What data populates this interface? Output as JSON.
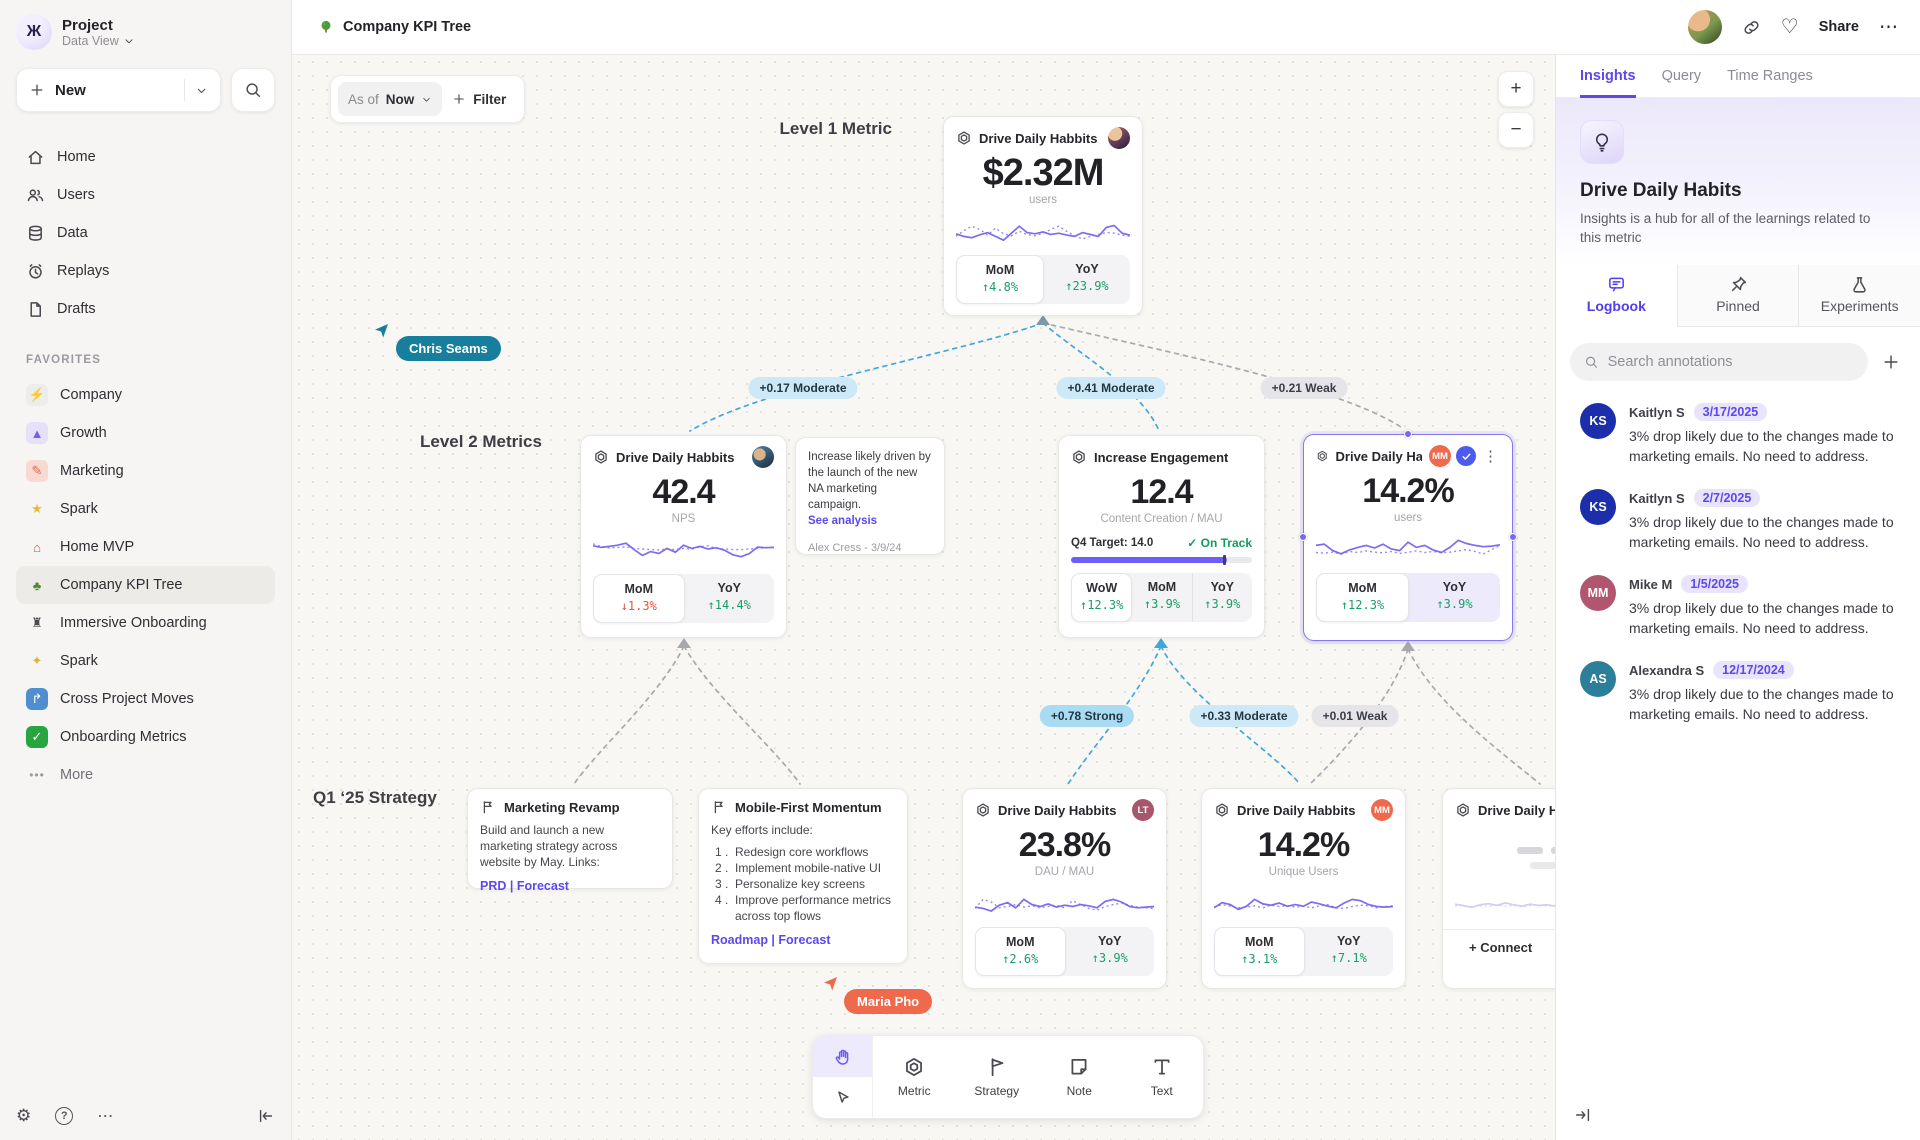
{
  "icons": {
    "more": "•••",
    "kebab": "⋮",
    "ellipsis": "⋯",
    "heart": "♡",
    "gear": "⚙",
    "help": "?",
    "logo": "Ж"
  },
  "sidebar": {
    "project_title": "Project",
    "project_subtitle": "Data View",
    "new_label": "New",
    "nav": [
      {
        "label": "Home"
      },
      {
        "label": "Users"
      },
      {
        "label": "Data"
      },
      {
        "label": "Replays"
      },
      {
        "label": "Drafts"
      }
    ],
    "favorites_heading": "FAVORITES",
    "favorites": [
      {
        "label": "Company",
        "glyph": "⚡",
        "bg": "#ededec",
        "fg": "#3f3f45"
      },
      {
        "label": "Growth",
        "glyph": "▲",
        "bg": "#e6e0fb",
        "fg": "#7a5ff0"
      },
      {
        "label": "Marketing",
        "glyph": "✎",
        "bg": "#fbd9d3",
        "fg": "#e06a4f"
      },
      {
        "label": "Spark",
        "glyph": "★",
        "bg": "transparent",
        "fg": "#e4b93c"
      },
      {
        "label": "Home MVP",
        "glyph": "⌂",
        "bg": "transparent",
        "fg": "#c05a46"
      },
      {
        "label": "Company KPI Tree",
        "glyph": "♣",
        "bg": "transparent",
        "fg": "#4e8a33"
      },
      {
        "label": "Immersive Onboarding",
        "glyph": "♜",
        "bg": "transparent",
        "fg": "#4a4a50"
      },
      {
        "label": "Spark",
        "glyph": "✦",
        "bg": "transparent",
        "fg": "#d9b23a"
      },
      {
        "label": "Cross Project Moves",
        "glyph": "↱",
        "bg": "#4f8fd0",
        "fg": "#ffffff"
      },
      {
        "label": "Onboarding Metrics",
        "glyph": "✓",
        "bg": "#27a53f",
        "fg": "#ffffff"
      }
    ],
    "more_label": "More"
  },
  "topbar": {
    "doc_title": "Company KPI Tree",
    "share_label": "Share"
  },
  "canvas": {
    "asof_prefix": "As of",
    "asof_value": "Now",
    "filter_label": "Filter",
    "zoom_in": "+",
    "zoom_out": "−",
    "labels": {
      "level1": "Level 1 Metric",
      "level2": "Level 2 Metrics",
      "strategy": "Q1 ‘25 Strategy"
    },
    "connections": {
      "c1": "+0.17 Moderate",
      "c2": "+0.41 Moderate",
      "c3": "+0.21 Weak",
      "c4": "+0.78 Strong",
      "c5": "+0.33 Moderate",
      "c6": "+0.01 Weak"
    },
    "cursors": {
      "chris": {
        "name": "Chris Seams",
        "color": "#177f9d"
      },
      "maria": {
        "name": "Maria Pho",
        "color": "#ef6a4c"
      }
    },
    "cards": {
      "level1": {
        "title": "Drive Daily Habbits",
        "value": "$2.32M",
        "unit": "users",
        "stats": [
          {
            "label": "MoM",
            "value": "↑4.8%"
          },
          {
            "label": "YoY",
            "value": "↑23.9%"
          }
        ]
      },
      "nps": {
        "title": "Drive Daily Habbits",
        "value": "42.4",
        "unit": "NPS",
        "stats": [
          {
            "label": "MoM",
            "value": "↓1.3%"
          },
          {
            "label": "YoY",
            "value": "↑14.4%"
          }
        ]
      },
      "note": {
        "text": "Increase likely driven by the launch of the new NA marketing campaign.",
        "link": "See analysis",
        "author": "Alex Cress - 3/9/24"
      },
      "engagement": {
        "title": "Increase Engagement",
        "value": "12.4",
        "unit": "Content Creation / MAU",
        "target": "Q4 Target: 14.0",
        "status": "✓ On Track",
        "stats": [
          {
            "label": "WoW",
            "value": "↑12.3%"
          },
          {
            "label": "MoM",
            "value": "↑3.9%"
          },
          {
            "label": "YoY",
            "value": "↑3.9%"
          }
        ]
      },
      "selected": {
        "title": "Drive Daily Habb..",
        "badge": "MM",
        "badge_color": "#ef6a4c",
        "value": "14.2%",
        "unit": "users",
        "stats": [
          {
            "label": "MoM",
            "value": "↑12.3%"
          },
          {
            "label": "YoY",
            "value": "↑3.9%"
          }
        ]
      },
      "strat1": {
        "title": "Marketing Revamp",
        "body": "Build and launch a new marketing strategy across website by May. Links:",
        "links": "PRD | Forecast"
      },
      "strat2": {
        "title": "Mobile-First Momentum",
        "intro": "Key efforts include:",
        "items": [
          "Redesign core workflows",
          "Implement mobile-native UI",
          "Personalize key screens",
          "Improve performance metrics across top flows"
        ],
        "links": "Roadmap | Forecast"
      },
      "dau": {
        "title": "Drive Daily Habbits",
        "badge": "LT",
        "badge_color": "#a8566b",
        "value": "23.8%",
        "unit": "DAU / MAU",
        "stats": [
          {
            "label": "MoM",
            "value": "↑2.6%"
          },
          {
            "label": "YoY",
            "value": "↑3.9%"
          }
        ]
      },
      "unique": {
        "title": "Drive Daily Habbits",
        "badge": "MM",
        "badge_color": "#ef6a4c",
        "value": "14.2%",
        "unit": "Unique Users",
        "stats": [
          {
            "label": "MoM",
            "value": "↑3.1%"
          },
          {
            "label": "YoY",
            "value": "↑7.1%"
          }
        ]
      },
      "partial": {
        "title": "Drive Daily Habbits",
        "connect_label": "+ Connect"
      }
    }
  },
  "toolbar": {
    "tools": [
      {
        "label": "Metric"
      },
      {
        "label": "Strategy"
      },
      {
        "label": "Note"
      },
      {
        "label": "Text"
      }
    ]
  },
  "right_panel": {
    "tabs": [
      {
        "label": "Insights"
      },
      {
        "label": "Query"
      },
      {
        "label": "Time Ranges"
      }
    ],
    "header": {
      "title": "Drive Daily Habits",
      "description": "Insights is a hub for all of the learnings related to this metric"
    },
    "subtabs": [
      {
        "label": "Logbook"
      },
      {
        "label": "Pinned"
      },
      {
        "label": "Experiments"
      }
    ],
    "search_placeholder": "Search annotations",
    "annotations": [
      {
        "initials": "KS",
        "name": "Kaitlyn S",
        "date": "3/17/2025",
        "color": "#1c2ea9",
        "text": "3% drop likely due to the changes made to marketing emails. No need to address."
      },
      {
        "initials": "KS",
        "name": "Kaitlyn S",
        "date": "2/7/2025",
        "color": "#1c2ea9",
        "text": "3% drop likely due to the changes made to marketing emails. No need to address."
      },
      {
        "initials": "MM",
        "name": "Mike M",
        "date": "1/5/2025",
        "color": "#b2556f",
        "text": "3% drop likely due to the changes made to marketing emails. No need to address."
      },
      {
        "initials": "AS",
        "name": "Alexandra S",
        "date": "12/17/2024",
        "color": "#2c7f99",
        "text": "3% drop likely due to the changes made to marketing emails. No need to address."
      }
    ]
  },
  "sparklines": {
    "level1": {
      "solid": [
        38,
        30,
        26,
        35,
        42,
        30,
        18,
        40,
        62,
        42,
        38,
        44,
        36,
        40,
        34,
        30,
        42,
        36,
        30,
        58,
        64,
        40,
        34
      ],
      "dotted": [
        30,
        48,
        62,
        52,
        34,
        56,
        38,
        32,
        46,
        36,
        32,
        40,
        52,
        62,
        46,
        32,
        22,
        30,
        36,
        42,
        40,
        34,
        30
      ]
    },
    "nps": {
      "solid": [
        60,
        55,
        58,
        62,
        68,
        48,
        30,
        42,
        36,
        52,
        40,
        62,
        52,
        58,
        50,
        54,
        46,
        32,
        26,
        36,
        56,
        54,
        55
      ],
      "dotted": [
        66,
        58,
        53,
        55,
        57,
        52,
        50,
        48,
        47,
        50,
        48,
        52,
        50,
        57,
        60,
        52,
        50,
        48,
        48,
        50,
        52,
        54,
        56
      ]
    },
    "selected": {
      "solid": [
        58,
        62,
        42,
        32,
        44,
        52,
        58,
        50,
        62,
        47,
        42,
        68,
        52,
        58,
        44,
        36,
        52,
        74,
        64,
        58,
        54,
        56,
        60
      ],
      "dotted": [
        36,
        34,
        37,
        31,
        39,
        36,
        41,
        37,
        35,
        39,
        33,
        37,
        41,
        36,
        39,
        35,
        37,
        41,
        45,
        39,
        31,
        45,
        58
      ]
    },
    "dau": {
      "solid": [
        34,
        30,
        22,
        40,
        48,
        32,
        58,
        42,
        36,
        44,
        34,
        40,
        36,
        42,
        38,
        32,
        52,
        58,
        50,
        36,
        32,
        34,
        36
      ],
      "dotted": [
        30,
        58,
        50,
        32,
        36,
        42,
        34,
        38,
        32,
        36,
        40,
        32,
        54,
        42,
        30,
        24,
        36,
        42,
        47,
        40,
        34,
        32,
        30
      ]
    },
    "unique": {
      "solid": [
        32,
        48,
        42,
        27,
        37,
        58,
        44,
        40,
        47,
        37,
        42,
        37,
        50,
        44,
        37,
        32,
        47,
        58,
        54,
        42,
        36,
        34,
        36
      ],
      "dotted": [
        34,
        42,
        37,
        32,
        34,
        38,
        32,
        40,
        36,
        38,
        34,
        37,
        32,
        38,
        42,
        32,
        30,
        36,
        40,
        38,
        32,
        36,
        38
      ]
    },
    "partial": {
      "solid": [
        40,
        36,
        30,
        38,
        42,
        36,
        44,
        38,
        34,
        40,
        36,
        38,
        34,
        40,
        36,
        34,
        42,
        46,
        40,
        36,
        34,
        38,
        40
      ],
      "dotted": [
        34,
        36,
        32,
        36,
        34,
        38,
        34,
        36,
        32,
        36,
        38,
        34,
        36,
        34,
        38,
        34,
        32,
        36,
        38,
        36,
        34,
        36,
        34
      ]
    }
  }
}
